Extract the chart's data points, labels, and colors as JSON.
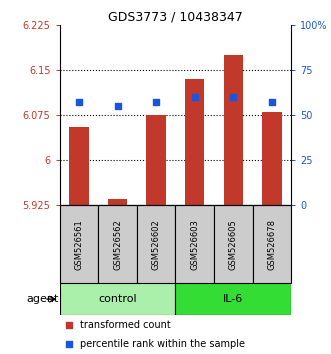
{
  "title": "GDS3773 / 10438347",
  "samples": [
    "GSM526561",
    "GSM526562",
    "GSM526602",
    "GSM526603",
    "GSM526605",
    "GSM526678"
  ],
  "groups": [
    "control",
    "control",
    "control",
    "IL-6",
    "IL-6",
    "IL-6"
  ],
  "bar_bottoms": [
    5.925,
    5.925,
    5.925,
    5.925,
    5.925,
    5.925
  ],
  "bar_tops": [
    6.055,
    5.935,
    6.075,
    6.135,
    6.175,
    6.08
  ],
  "percentile_pct": [
    57,
    55,
    57,
    60,
    60,
    57
  ],
  "ylim_left": [
    5.925,
    6.225
  ],
  "ylim_right": [
    0,
    100
  ],
  "yticks_left": [
    5.925,
    6.0,
    6.075,
    6.15,
    6.225
  ],
  "ytick_labels_left": [
    "5.925",
    "6",
    "6.075",
    "6.15",
    "6.225"
  ],
  "yticks_right": [
    0,
    25,
    50,
    75,
    100
  ],
  "ytick_labels_right": [
    "0",
    "25",
    "50",
    "75",
    "100%"
  ],
  "hlines": [
    6.0,
    6.075,
    6.15
  ],
  "bar_color": "#c0392b",
  "dot_color": "#1a56db",
  "control_color": "#aaf0aa",
  "il6_color": "#33dd33",
  "sample_box_color": "#cccccc",
  "legend_bar_label": "transformed count",
  "legend_dot_label": "percentile rank within the sample",
  "agent_label": "agent",
  "control_label": "control",
  "il6_label": "IL-6"
}
